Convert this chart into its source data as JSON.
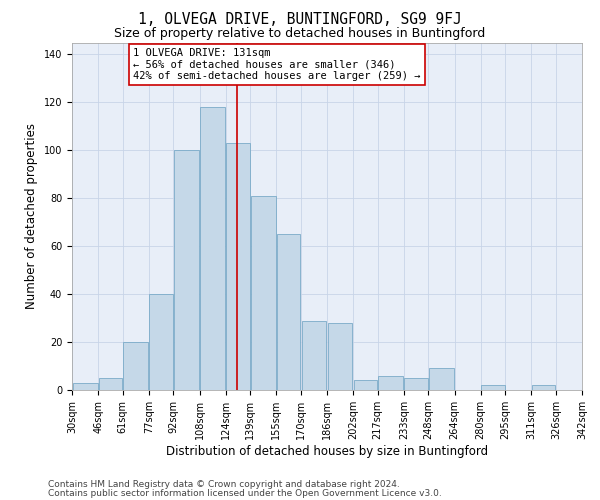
{
  "title1": "1, OLVEGA DRIVE, BUNTINGFORD, SG9 9FJ",
  "title2": "Size of property relative to detached houses in Buntingford",
  "xlabel": "Distribution of detached houses by size in Buntingford",
  "ylabel": "Number of detached properties",
  "footer1": "Contains HM Land Registry data © Crown copyright and database right 2024.",
  "footer2": "Contains public sector information licensed under the Open Government Licence v3.0.",
  "annotation_title": "1 OLVEGA DRIVE: 131sqm",
  "annotation_line1": "← 56% of detached houses are smaller (346)",
  "annotation_line2": "42% of semi-detached houses are larger (259) →",
  "bar_color": "#c5d8e8",
  "bar_edge_color": "#7aaac8",
  "vline_color": "#cc0000",
  "vline_x": 131,
  "bin_edges": [
    30,
    46,
    61,
    77,
    92,
    108,
    124,
    139,
    155,
    170,
    186,
    202,
    217,
    233,
    248,
    264,
    280,
    295,
    311,
    326,
    342
  ],
  "bar_heights": [
    3,
    5,
    20,
    40,
    100,
    118,
    103,
    81,
    65,
    29,
    28,
    4,
    6,
    5,
    9,
    0,
    2,
    0,
    2,
    0
  ],
  "xlim": [
    30,
    342
  ],
  "ylim": [
    0,
    145
  ],
  "yticks": [
    0,
    20,
    40,
    60,
    80,
    100,
    120,
    140
  ],
  "grid_color": "#c8d4e8",
  "bg_color": "#e8eef8",
  "box_color": "#cc0000",
  "title1_fontsize": 10.5,
  "title2_fontsize": 9,
  "annotation_fontsize": 7.5,
  "tick_fontsize": 7,
  "ylabel_fontsize": 8.5,
  "xlabel_fontsize": 8.5,
  "footer_fontsize": 6.5
}
